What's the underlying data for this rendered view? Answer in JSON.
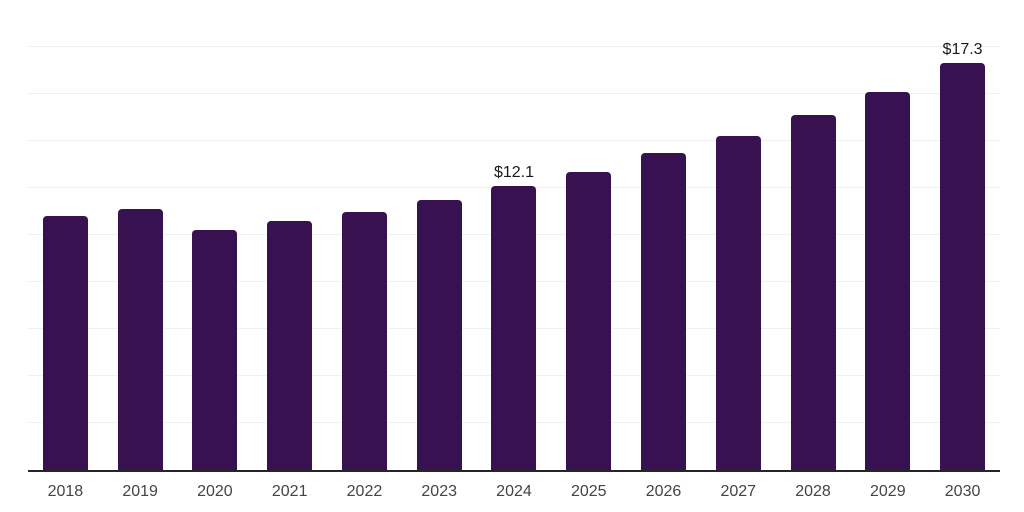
{
  "chart": {
    "background": "#FFFFFF"
  },
  "chart_data": {
    "type": "bar",
    "title": "",
    "xlabel": "",
    "ylabel": "",
    "categories": [
      "2018",
      "2019",
      "2020",
      "2021",
      "2022",
      "2023",
      "2024",
      "2025",
      "2026",
      "2027",
      "2028",
      "2029",
      "2030"
    ],
    "values": [
      10.8,
      11.1,
      10.2,
      10.6,
      11.0,
      11.5,
      12.1,
      12.7,
      13.5,
      14.2,
      15.1,
      16.1,
      17.3
    ],
    "data_labels": {
      "2024": "$12.1",
      "2030": "$17.3"
    },
    "ylim": [
      0,
      20
    ],
    "gridline_step": 2,
    "grid": true,
    "legend": false,
    "y_axis_labels_visible": false,
    "colors": {
      "bar": "#371150",
      "gridline": "#F0F0F0",
      "axis": "#262626",
      "tick_label": "#444444",
      "data_label": "#1A1A1A"
    }
  }
}
